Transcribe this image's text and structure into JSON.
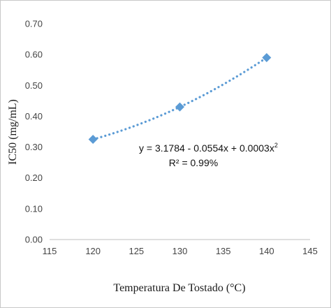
{
  "chart_data": {
    "type": "scatter",
    "xlabel": "Temperatura De Tostado (°C)",
    "ylabel": "IC50 (mg/mL)",
    "xlim": [
      115,
      145
    ],
    "ylim": [
      0,
      0.7
    ],
    "x_ticks": [
      "115",
      "120",
      "125",
      "130",
      "135",
      "140",
      "145"
    ],
    "y_ticks": [
      "0.00",
      "0.10",
      "0.20",
      "0.30",
      "0.40",
      "0.50",
      "0.60",
      "0.70"
    ],
    "grid": false,
    "series": [
      {
        "x": [
          120,
          130,
          140
        ],
        "y": [
          0.325,
          0.43,
          0.59
        ],
        "marker": "diamond",
        "color": "#5b9bd5",
        "trendline": {
          "type": "polynomial-2",
          "style": "dotted",
          "coefficients": [
            3.1784,
            -0.0554,
            0.0003
          ],
          "equation_text": "y = 3.1784 - 0.0554x + 0.0003x",
          "equation_exponent": "2",
          "r2_text": "R² = 0.99%"
        }
      }
    ]
  }
}
